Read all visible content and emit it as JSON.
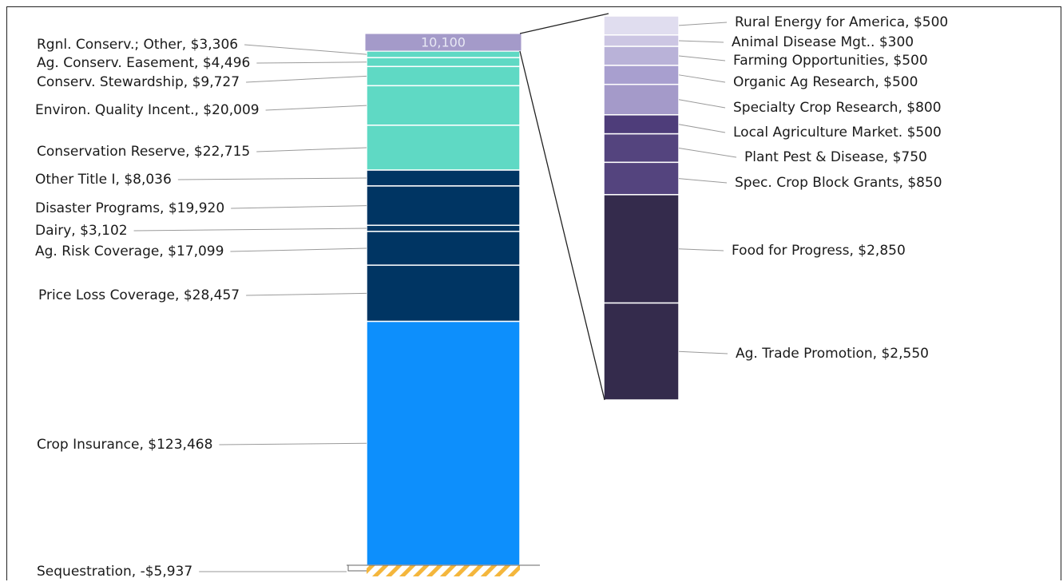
{
  "chart_data": {
    "type": "bar",
    "subtype": "stacked-breakout",
    "main_stack": {
      "top_label": "10,100",
      "segments": [
        {
          "label": "Rgnl. Conserv.; Other, $3,306",
          "value": 3306,
          "color": "#5fd9c4"
        },
        {
          "label": "Ag. Conserv. Easement, $4,496",
          "value": 4496,
          "color": "#5fd9c4"
        },
        {
          "label": "Conserv. Stewardship, $9,727",
          "value": 9727,
          "color": "#5fd9c4"
        },
        {
          "label": "Environ. Quality Incent., $20,009",
          "value": 20009,
          "color": "#5fd9c4"
        },
        {
          "label": "Conservation Reserve, $22,715",
          "value": 22715,
          "color": "#5fd9c4"
        },
        {
          "label": "Other Title I, $8,036",
          "value": 8036,
          "color": "#003563"
        },
        {
          "label": "Disaster Programs, $19,920",
          "value": 19920,
          "color": "#003563"
        },
        {
          "label": "Dairy, $3,102",
          "value": 3102,
          "color": "#003563"
        },
        {
          "label": "Ag. Risk Coverage, $17,099",
          "value": 17099,
          "color": "#003563"
        },
        {
          "label": "Price Loss Coverage, $28,457",
          "value": 28457,
          "color": "#003563"
        },
        {
          "label": "Crop Insurance, $123,468",
          "value": 123468,
          "color": "#0d8ffc"
        }
      ],
      "top_segment": {
        "value": 10100,
        "color": "#a49ac9"
      },
      "negative_segment": {
        "label": "Sequestration, -$5,937",
        "value": -5937,
        "color": "#f4b63c"
      }
    },
    "breakout_stack": {
      "segments": [
        {
          "label": "Rural Energy for America, $500",
          "value": 500,
          "color": "#e0ddef"
        },
        {
          "label": "Animal Disease Mgt.. $300",
          "value": 300,
          "color": "#ccc6e3"
        },
        {
          "label": "Farming Opportunities, $500",
          "value": 500,
          "color": "#b9b2d8"
        },
        {
          "label": "Organic Ag Research, $500",
          "value": 500,
          "color": "#a89fcf"
        },
        {
          "label": "Specialty Crop Research, $800",
          "value": 800,
          "color": "#a49ac9"
        },
        {
          "label": "Local Agriculture Market. $500",
          "value": 500,
          "color": "#4e3d7a"
        },
        {
          "label": "Plant Pest & Disease, $750",
          "value": 750,
          "color": "#54447e"
        },
        {
          "label": "Spec. Crop Block Grants, $850",
          "value": 850,
          "color": "#54447e"
        },
        {
          "label": "Food for Progress, $2,850",
          "value": 2850,
          "color": "#342b4c"
        },
        {
          "label": "Ag. Trade Promotion, $2,550",
          "value": 2550,
          "color": "#342b4c"
        }
      ]
    },
    "title": "",
    "xlabel": "",
    "ylabel": "",
    "legend": "none"
  }
}
